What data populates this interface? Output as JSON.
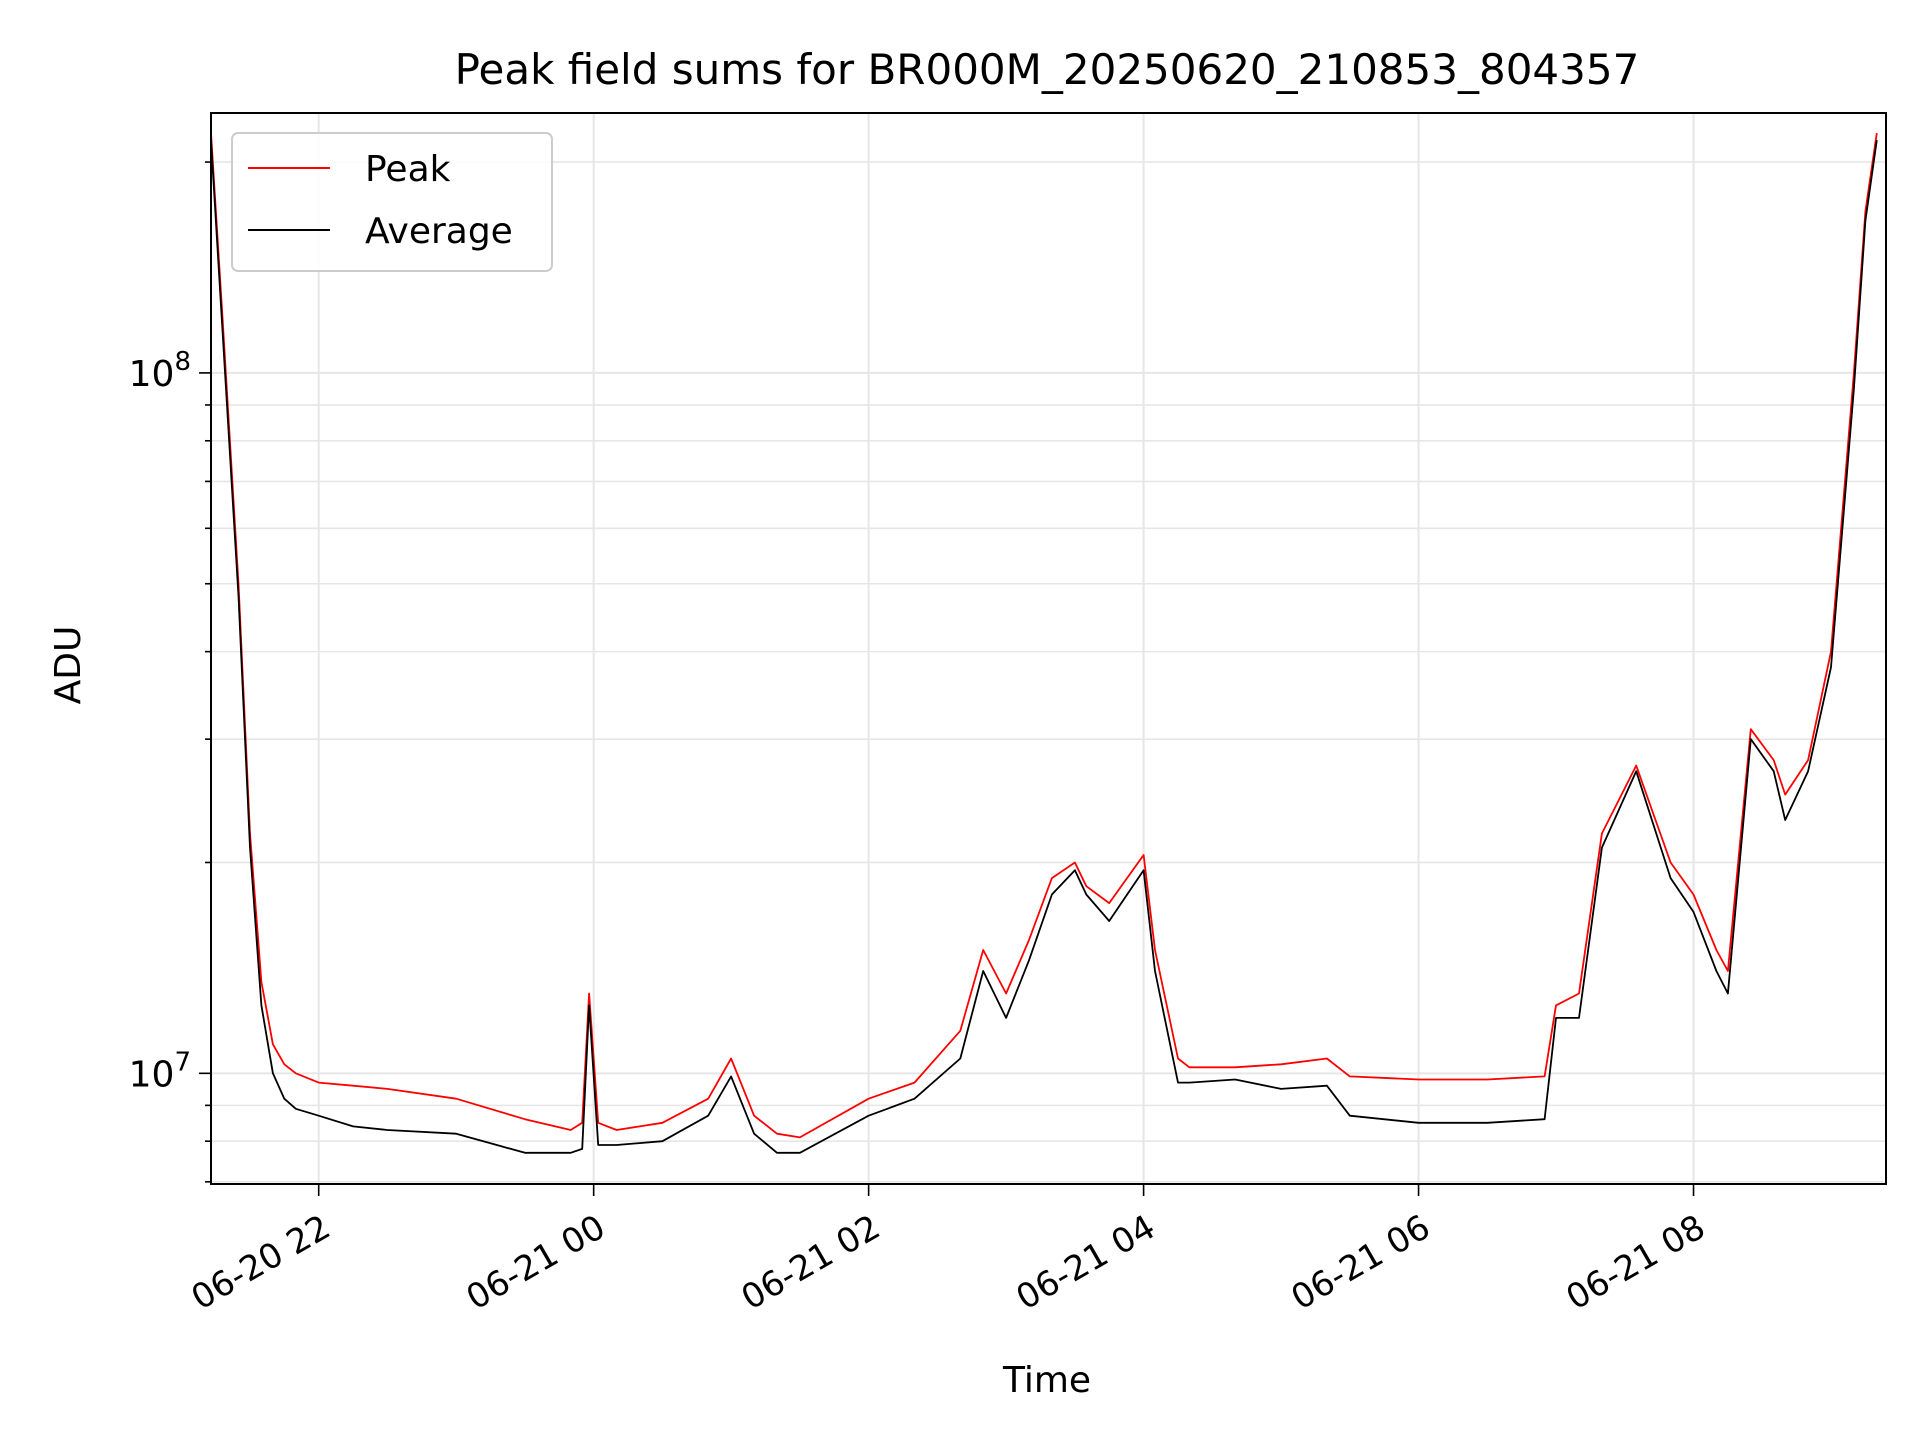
{
  "chart_data": {
    "type": "line",
    "title": "Peak field sums for BR000M_20250620_210853_804357",
    "xlabel": "Time",
    "ylabel": "ADU",
    "yscale": "log",
    "xlim": [
      "2025-06-20 21:13",
      "2025-06-21 09:24"
    ],
    "ylim": [
      6950000,
      235000000
    ],
    "x_ticks": [
      {
        "value": "2025-06-20 22:00",
        "label": "06-20 22"
      },
      {
        "value": "2025-06-21 00:00",
        "label": "06-21 00"
      },
      {
        "value": "2025-06-21 02:00",
        "label": "06-21 02"
      },
      {
        "value": "2025-06-21 04:00",
        "label": "06-21 04"
      },
      {
        "value": "2025-06-21 06:00",
        "label": "06-21 06"
      },
      {
        "value": "2025-06-21 08:00",
        "label": "06-21 08"
      }
    ],
    "y_ticks": [
      {
        "value": 10000000,
        "base": "10",
        "exp": "7"
      },
      {
        "value": 100000000,
        "base": "10",
        "exp": "8"
      }
    ],
    "grid": true,
    "legend_position": "upper-left",
    "series": [
      {
        "name": "Peak",
        "color": "#ff0000",
        "x": [
          "2025-06-20 21:13",
          "2025-06-20 21:18",
          "2025-06-20 21:25",
          "2025-06-20 21:30",
          "2025-06-20 21:35",
          "2025-06-20 21:40",
          "2025-06-20 21:45",
          "2025-06-20 21:50",
          "2025-06-20 22:00",
          "2025-06-20 22:15",
          "2025-06-20 22:30",
          "2025-06-20 23:00",
          "2025-06-20 23:30",
          "2025-06-20 23:50",
          "2025-06-20 23:55",
          "2025-06-20 23:58",
          "2025-06-21 00:02",
          "2025-06-21 00:10",
          "2025-06-21 00:30",
          "2025-06-21 00:50",
          "2025-06-21 01:00",
          "2025-06-21 01:10",
          "2025-06-21 01:20",
          "2025-06-21 01:30",
          "2025-06-21 02:00",
          "2025-06-21 02:20",
          "2025-06-21 02:40",
          "2025-06-21 02:50",
          "2025-06-21 03:00",
          "2025-06-21 03:10",
          "2025-06-21 03:20",
          "2025-06-21 03:30",
          "2025-06-21 03:35",
          "2025-06-21 03:45",
          "2025-06-21 04:00",
          "2025-06-21 04:05",
          "2025-06-21 04:15",
          "2025-06-21 04:20",
          "2025-06-21 04:40",
          "2025-06-21 05:00",
          "2025-06-21 05:20",
          "2025-06-21 05:30",
          "2025-06-21 06:00",
          "2025-06-21 06:30",
          "2025-06-21 06:55",
          "2025-06-21 07:00",
          "2025-06-21 07:10",
          "2025-06-21 07:20",
          "2025-06-21 07:35",
          "2025-06-21 07:50",
          "2025-06-21 08:00",
          "2025-06-21 08:10",
          "2025-06-21 08:15",
          "2025-06-21 08:25",
          "2025-06-21 08:35",
          "2025-06-21 08:40",
          "2025-06-21 08:50",
          "2025-06-21 09:00",
          "2025-06-21 09:10",
          "2025-06-21 09:15",
          "2025-06-21 09:20"
        ],
        "y": [
          220000000,
          120000000,
          50000000,
          22000000,
          13500000,
          11000000,
          10300000,
          10000000,
          9700000,
          9600000,
          9500000,
          9200000,
          8600000,
          8300000,
          8500000,
          13000000,
          8500000,
          8300000,
          8500000,
          9200000,
          10500000,
          8700000,
          8200000,
          8100000,
          9200000,
          9700000,
          11500000,
          15000000,
          13000000,
          15500000,
          19000000,
          20000000,
          18500000,
          17500000,
          20500000,
          15000000,
          10500000,
          10200000,
          10200000,
          10300000,
          10500000,
          9900000,
          9800000,
          9800000,
          9900000,
          12500000,
          13000000,
          22000000,
          27500000,
          20000000,
          18000000,
          15000000,
          14000000,
          31000000,
          28000000,
          25000000,
          28000000,
          40000000,
          100000000,
          170000000,
          220000000
        ]
      },
      {
        "name": "Average",
        "color": "#000000",
        "x": [
          "2025-06-20 21:13",
          "2025-06-20 21:18",
          "2025-06-20 21:25",
          "2025-06-20 21:30",
          "2025-06-20 21:35",
          "2025-06-20 21:40",
          "2025-06-20 21:45",
          "2025-06-20 21:50",
          "2025-06-20 22:00",
          "2025-06-20 22:15",
          "2025-06-20 22:30",
          "2025-06-20 23:00",
          "2025-06-20 23:30",
          "2025-06-20 23:50",
          "2025-06-20 23:55",
          "2025-06-20 23:58",
          "2025-06-21 00:02",
          "2025-06-21 00:10",
          "2025-06-21 00:30",
          "2025-06-21 00:50",
          "2025-06-21 01:00",
          "2025-06-21 01:10",
          "2025-06-21 01:20",
          "2025-06-21 01:30",
          "2025-06-21 02:00",
          "2025-06-21 02:20",
          "2025-06-21 02:40",
          "2025-06-21 02:50",
          "2025-06-21 03:00",
          "2025-06-21 03:10",
          "2025-06-21 03:20",
          "2025-06-21 03:30",
          "2025-06-21 03:35",
          "2025-06-21 03:45",
          "2025-06-21 04:00",
          "2025-06-21 04:05",
          "2025-06-21 04:15",
          "2025-06-21 04:20",
          "2025-06-21 04:40",
          "2025-06-21 05:00",
          "2025-06-21 05:20",
          "2025-06-21 05:30",
          "2025-06-21 06:00",
          "2025-06-21 06:30",
          "2025-06-21 06:55",
          "2025-06-21 07:00",
          "2025-06-21 07:10",
          "2025-06-21 07:20",
          "2025-06-21 07:35",
          "2025-06-21 07:50",
          "2025-06-21 08:00",
          "2025-06-21 08:10",
          "2025-06-21 08:15",
          "2025-06-21 08:25",
          "2025-06-21 08:35",
          "2025-06-21 08:40",
          "2025-06-21 08:50",
          "2025-06-21 09:00",
          "2025-06-21 09:10",
          "2025-06-21 09:15",
          "2025-06-21 09:20"
        ],
        "y": [
          215000000,
          115000000,
          48000000,
          21000000,
          12500000,
          10000000,
          9200000,
          8900000,
          8700000,
          8400000,
          8300000,
          8200000,
          7700000,
          7700000,
          7800000,
          12500000,
          7900000,
          7900000,
          8000000,
          8700000,
          9900000,
          8200000,
          7700000,
          7700000,
          8700000,
          9200000,
          10500000,
          14000000,
          12000000,
          14500000,
          18000000,
          19500000,
          18000000,
          16500000,
          19500000,
          14000000,
          9700000,
          9700000,
          9800000,
          9500000,
          9600000,
          8700000,
          8500000,
          8500000,
          8600000,
          12000000,
          12000000,
          21000000,
          27000000,
          19000000,
          17000000,
          14000000,
          13000000,
          30000000,
          27000000,
          23000000,
          27000000,
          38000000,
          95000000,
          165000000,
          215000000
        ]
      }
    ]
  }
}
